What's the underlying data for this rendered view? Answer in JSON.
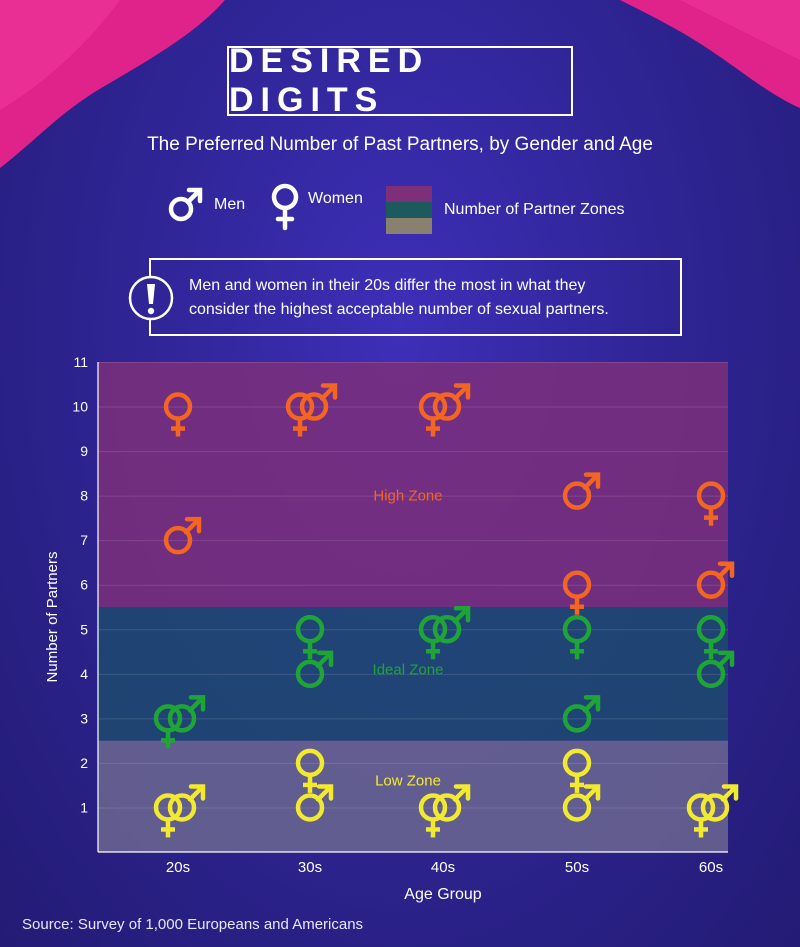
{
  "header": {
    "title": "DESIRED DIGITS",
    "subtitle": "The Preferred Number of Past Partners, by Gender and Age"
  },
  "legend": {
    "men_label": "Men",
    "women_label": "Women",
    "zones_label": "Number of Partner Zones"
  },
  "note": {
    "line1": "Men and women in their 20s differ the most in what they",
    "line2": "consider the highest acceptable number of sexual partners."
  },
  "source": "Survey of 1,000 Europeans and Americans",
  "colors": {
    "high": "#f26522",
    "ideal": "#1fa537",
    "low": "#f2ea2e",
    "high_zone": "#7d2f7a",
    "ideal_zone": "#1d4a6e",
    "low_zone": "#6c6790",
    "drape": "#e0238a"
  },
  "chart_data": {
    "type": "scatter",
    "xlabel": "Age Group",
    "ylabel": "Number of Partners",
    "categories": [
      "20s",
      "30s",
      "40s",
      "50s",
      "60s"
    ],
    "ylim": [
      0,
      11
    ],
    "yticks": [
      1,
      2,
      3,
      4,
      5,
      6,
      7,
      8,
      9,
      10,
      11
    ],
    "zones": [
      {
        "name": "High Zone",
        "from": 5.5,
        "to": 11
      },
      {
        "name": "Ideal Zone",
        "from": 2.5,
        "to": 5.5
      },
      {
        "name": "Low Zone",
        "from": 0,
        "to": 2.5
      }
    ],
    "series": [
      {
        "name": "Men",
        "high": [
          7,
          10,
          10,
          8,
          6
        ],
        "ideal": [
          3,
          4,
          5,
          3,
          4
        ],
        "low": [
          1,
          1,
          1,
          1,
          1
        ]
      },
      {
        "name": "Women",
        "high": [
          10,
          10,
          10,
          6,
          8
        ],
        "ideal": [
          3,
          5,
          5,
          5,
          5
        ],
        "low": [
          1,
          2,
          1,
          2,
          1
        ]
      }
    ]
  }
}
